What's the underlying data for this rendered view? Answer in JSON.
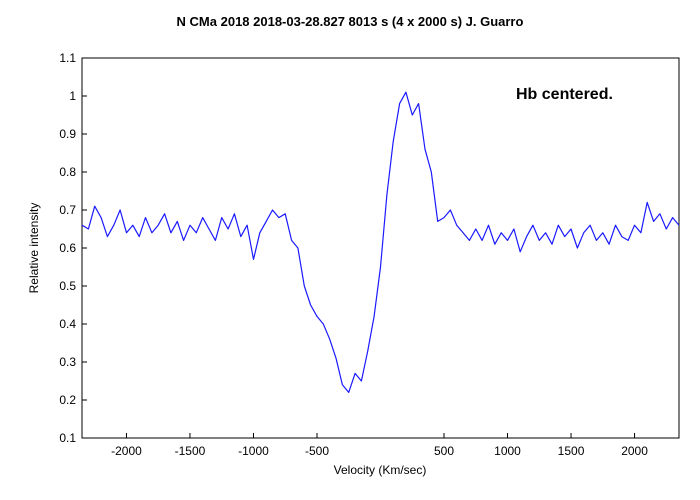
{
  "chart_data": {
    "type": "line",
    "title": "N CMa 2018   2018-03-28.827   8013 s (4 x 2000 s)   J. Guarro",
    "xlabel": "Velocity (Km/sec)",
    "ylabel": "Relative intensity",
    "annotation": "Hb centered.",
    "xlim": [
      -2350,
      2350
    ],
    "ylim": [
      0.1,
      1.1
    ],
    "x_ticks": [
      -2000,
      -1500,
      -1000,
      -500,
      500,
      1000,
      1500,
      2000
    ],
    "x_tick_labels": [
      "-2000",
      "-1500",
      "-1000",
      "-500",
      "500",
      "1000",
      "1500",
      "2000"
    ],
    "y_ticks": [
      0.1,
      0.2,
      0.3,
      0.4,
      0.5,
      0.6,
      0.7,
      0.8,
      0.9,
      1.0,
      1.1
    ],
    "y_tick_labels": [
      "0.1",
      "0.2",
      "0.3",
      "0.4",
      "0.5",
      "0.6",
      "0.7",
      "0.8",
      "0.9",
      "1",
      "1.1"
    ],
    "grid": false,
    "color": "#1a1aff",
    "series": [
      {
        "x": [
          -2350,
          -2300,
          -2250,
          -2200,
          -2150,
          -2100,
          -2050,
          -2000,
          -1950,
          -1900,
          -1850,
          -1800,
          -1750,
          -1700,
          -1650,
          -1600,
          -1550,
          -1500,
          -1450,
          -1400,
          -1350,
          -1300,
          -1250,
          -1200,
          -1150,
          -1100,
          -1050,
          -1000,
          -950,
          -900,
          -850,
          -800,
          -750,
          -700,
          -650,
          -600,
          -550,
          -500,
          -450,
          -400,
          -350,
          -300,
          -250,
          -200,
          -150,
          -100,
          -50,
          0,
          50,
          100,
          150,
          200,
          250,
          300,
          350,
          400,
          450,
          500,
          550,
          600,
          650,
          700,
          750,
          800,
          850,
          900,
          950,
          1000,
          1050,
          1100,
          1150,
          1200,
          1250,
          1300,
          1350,
          1400,
          1450,
          1500,
          1550,
          1600,
          1650,
          1700,
          1750,
          1800,
          1850,
          1900,
          1950,
          2000,
          2050,
          2100,
          2150,
          2200,
          2250,
          2300,
          2350
        ],
        "values": [
          0.66,
          0.65,
          0.71,
          0.68,
          0.63,
          0.66,
          0.7,
          0.64,
          0.66,
          0.63,
          0.68,
          0.64,
          0.66,
          0.69,
          0.64,
          0.67,
          0.62,
          0.66,
          0.64,
          0.68,
          0.65,
          0.62,
          0.68,
          0.65,
          0.69,
          0.63,
          0.66,
          0.57,
          0.64,
          0.67,
          0.7,
          0.68,
          0.69,
          0.62,
          0.6,
          0.5,
          0.45,
          0.42,
          0.4,
          0.36,
          0.31,
          0.24,
          0.22,
          0.27,
          0.25,
          0.33,
          0.42,
          0.55,
          0.74,
          0.88,
          0.98,
          1.01,
          0.95,
          0.98,
          0.86,
          0.8,
          0.67,
          0.68,
          0.7,
          0.66,
          0.64,
          0.62,
          0.65,
          0.62,
          0.66,
          0.61,
          0.64,
          0.62,
          0.65,
          0.59,
          0.63,
          0.66,
          0.62,
          0.64,
          0.61,
          0.66,
          0.63,
          0.65,
          0.6,
          0.64,
          0.66,
          0.62,
          0.64,
          0.61,
          0.66,
          0.63,
          0.62,
          0.66,
          0.64,
          0.72,
          0.67,
          0.69,
          0.65,
          0.68,
          0.66
        ]
      }
    ]
  }
}
